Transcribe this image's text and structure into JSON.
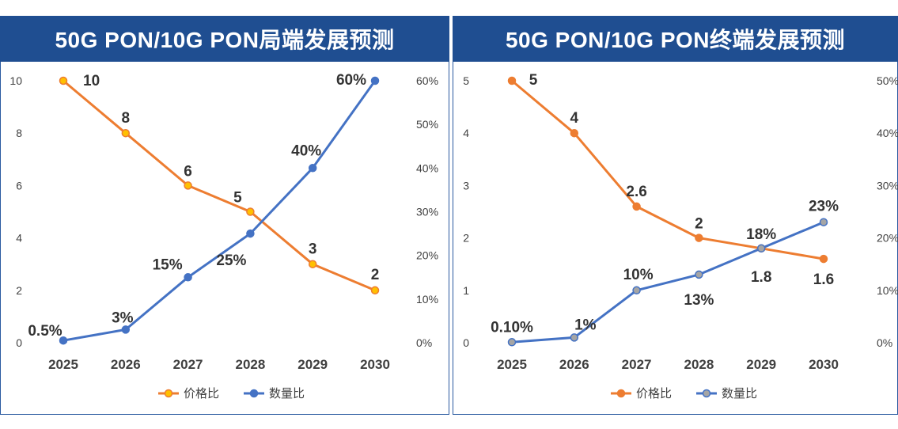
{
  "chart_data": [
    {
      "type": "line",
      "title": "50G PON/10G PON局端发展预测",
      "categories": [
        "2025",
        "2026",
        "2027",
        "2028",
        "2029",
        "2030"
      ],
      "y_left": {
        "ylim": [
          0,
          10
        ],
        "ticks": [
          "0",
          "2",
          "4",
          "6",
          "8",
          "10"
        ]
      },
      "y_right": {
        "ylim": [
          0,
          60
        ],
        "ticks": [
          "0%",
          "10%",
          "20%",
          "30%",
          "40%",
          "50%",
          "60%"
        ]
      },
      "series": [
        {
          "name": "价格比",
          "axis": "left",
          "color": "#ed7d31",
          "marker_fill": "#ffc000",
          "values": [
            10,
            8,
            6,
            5,
            3,
            2
          ],
          "labels": [
            "10",
            "8",
            "6",
            "5",
            "3",
            "2"
          ]
        },
        {
          "name": "数量比",
          "axis": "right",
          "color": "#4472c4",
          "marker_fill": "#4472c4",
          "values": [
            0.5,
            3,
            15,
            25,
            40,
            60
          ],
          "labels": [
            "0.5%",
            "3%",
            "15%",
            "25%",
            "40%",
            "60%"
          ]
        }
      ],
      "legend": "bottom"
    },
    {
      "type": "line",
      "title": "50G PON/10G PON终端发展预测",
      "categories": [
        "2025",
        "2026",
        "2027",
        "2028",
        "2029",
        "2030"
      ],
      "y_left": {
        "ylim": [
          0,
          5
        ],
        "ticks": [
          "0",
          "1",
          "2",
          "3",
          "4",
          "5"
        ]
      },
      "y_right": {
        "ylim": [
          0,
          50
        ],
        "ticks": [
          "0%",
          "10%",
          "20%",
          "30%",
          "40%",
          "50%"
        ]
      },
      "series": [
        {
          "name": "价格比",
          "axis": "left",
          "color": "#ed7d31",
          "marker_fill": "#ed7d31",
          "values": [
            5,
            4,
            2.6,
            2,
            1.8,
            1.6
          ],
          "labels": [
            "5",
            "4",
            "2.6",
            "2",
            "1.8",
            "1.6"
          ]
        },
        {
          "name": "数量比",
          "axis": "right",
          "color": "#4472c4",
          "marker_fill": "#a5a5a5",
          "values": [
            0.1,
            1,
            10,
            13,
            18,
            23
          ],
          "labels": [
            "0.10%",
            "1%",
            "10%",
            "13%",
            "18%",
            "23%"
          ]
        }
      ],
      "legend": "bottom"
    }
  ]
}
